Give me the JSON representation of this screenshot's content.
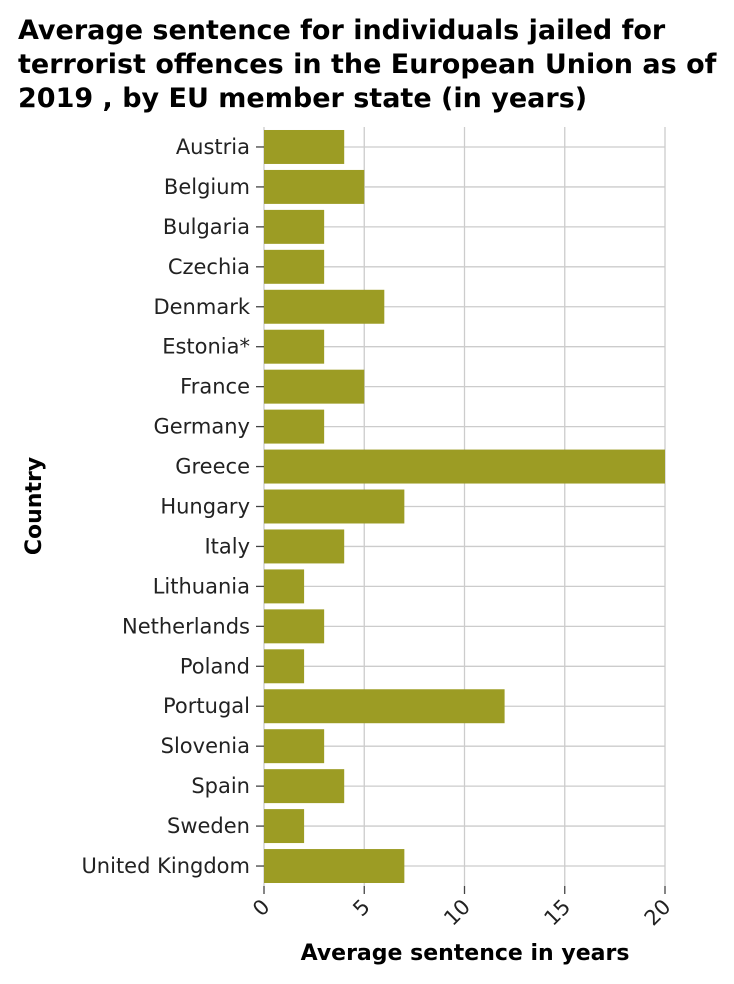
{
  "chart_data": {
    "type": "bar",
    "orientation": "horizontal",
    "title": "Average sentence for individuals jailed for terrorist offences in the European Union as of 2019 , by EU member state (in years)",
    "xlabel": "Average sentence in years",
    "ylabel": "Country",
    "categories": [
      "Austria",
      "Belgium",
      "Bulgaria",
      "Czechia",
      "Denmark",
      "Estonia*",
      "France",
      "Germany",
      "Greece",
      "Hungary",
      "Italy",
      "Lithuania",
      "Netherlands",
      "Poland",
      "Portugal",
      "Slovenia",
      "Spain",
      "Sweden",
      "United Kingdom"
    ],
    "values": [
      4,
      5,
      3,
      3,
      6,
      3,
      5,
      3,
      20,
      7,
      4,
      2,
      3,
      2,
      12,
      3,
      4,
      2,
      7
    ],
    "xlim": [
      0,
      20
    ],
    "xticks": [
      0,
      5,
      10,
      15,
      20
    ],
    "grid": true,
    "bar_color": "#9c9c24",
    "grid_color": "#cccccc"
  }
}
